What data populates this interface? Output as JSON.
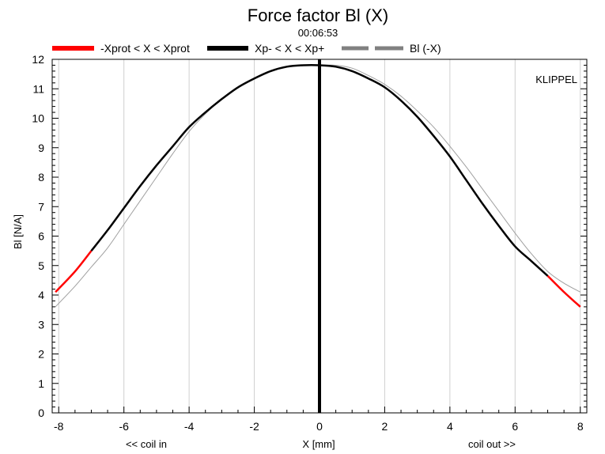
{
  "chart_data": {
    "type": "line",
    "title": "Force factor Bl (X)",
    "subtitle": "00:06:53",
    "xlabel": "X [mm]",
    "ylabel": "Bl [N/A]",
    "xlabel_left": "<< coil in",
    "xlabel_right": "coil out >>",
    "watermark": "KLIPPEL",
    "xlim": [
      -8.2,
      8.2
    ],
    "ylim": [
      0,
      12
    ],
    "xticks": [
      -8,
      -6,
      -4,
      -2,
      0,
      2,
      4,
      6,
      8
    ],
    "yticks": [
      0,
      1,
      2,
      3,
      4,
      5,
      6,
      7,
      8,
      9,
      10,
      11,
      12
    ],
    "grid": true,
    "legend_position": "top",
    "legend": [
      {
        "label": "-Xprot < X < Xprot",
        "color": "#ff0000",
        "style": "solid"
      },
      {
        "label": "Xp- < X < Xp+",
        "color": "#000000",
        "style": "solid"
      },
      {
        "label": "Bl (-X)",
        "color": "#808080",
        "style": "dashed"
      }
    ],
    "vline_x": 0,
    "series": [
      {
        "name": "Bl (X)",
        "x": [
          -8.1,
          -7.5,
          -7.0,
          -6.5,
          -6.0,
          -5.5,
          -5.0,
          -4.5,
          -4.0,
          -3.5,
          -3.0,
          -2.5,
          -2.0,
          -1.5,
          -1.0,
          -0.5,
          0.0,
          0.5,
          1.0,
          1.5,
          2.0,
          2.5,
          3.0,
          3.5,
          4.0,
          4.5,
          5.0,
          5.5,
          6.0,
          6.5,
          7.0,
          7.5,
          8.0
        ],
        "y": [
          4.1,
          4.8,
          5.5,
          6.2,
          6.95,
          7.7,
          8.4,
          9.05,
          9.7,
          10.2,
          10.65,
          11.05,
          11.35,
          11.6,
          11.75,
          11.8,
          11.8,
          11.75,
          11.6,
          11.35,
          11.05,
          10.6,
          10.05,
          9.4,
          8.7,
          7.9,
          7.1,
          6.35,
          5.65,
          5.15,
          4.65,
          4.1,
          3.6
        ]
      },
      {
        "name": "Bl (-X)",
        "x": [
          -8.1,
          -7.5,
          -7.0,
          -6.5,
          -6.0,
          -5.5,
          -5.0,
          -4.5,
          -4.0,
          -3.5,
          -3.0,
          -2.5,
          -2.0,
          -1.5,
          -1.0,
          -0.5,
          0.0,
          0.5,
          1.0,
          1.5,
          2.0,
          2.5,
          3.0,
          3.5,
          4.0,
          4.5,
          5.0,
          5.5,
          6.0,
          6.5,
          7.0,
          7.5,
          8.0
        ],
        "y": [
          3.6,
          4.3,
          4.95,
          5.6,
          6.4,
          7.2,
          8.0,
          8.8,
          9.55,
          10.15,
          10.65,
          11.05,
          11.35,
          11.6,
          11.75,
          11.8,
          11.8,
          11.8,
          11.7,
          11.45,
          11.15,
          10.75,
          10.25,
          9.7,
          9.05,
          8.35,
          7.6,
          6.85,
          6.1,
          5.4,
          4.8,
          4.4,
          4.1
        ]
      }
    ],
    "xprot_range": [
      -7.0,
      7.0
    ]
  }
}
